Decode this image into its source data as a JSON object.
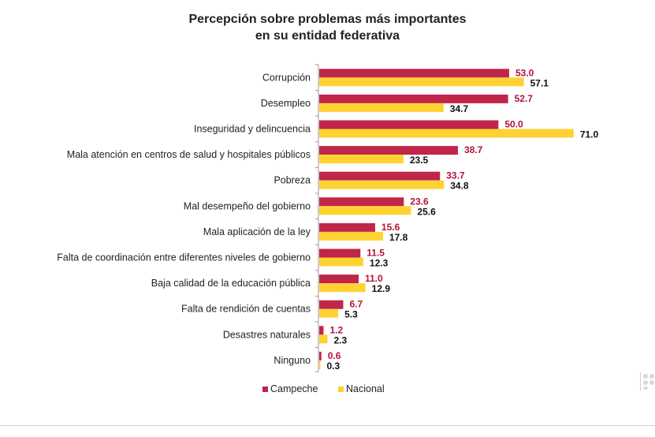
{
  "title_line1": "Percepción sobre problemas más importantes",
  "title_line2": "en su entidad federativa",
  "colors": {
    "campeche": "#c0254a",
    "nacional": "#ffd233",
    "campeche_label": "#b5123a",
    "nacional_label": "#111111",
    "axis": "#9a9a9a"
  },
  "chart_data": {
    "type": "bar",
    "orientation": "horizontal",
    "categories": [
      "Corrupción",
      "Desempleo",
      "Inseguridad y delincuencia",
      "Mala atención en centros de salud y hospitales públicos",
      "Pobreza",
      "Mal desempeño del gobierno",
      "Mala aplicación de la ley",
      "Falta de coordinación entre diferentes niveles de gobierno",
      "Baja calidad de la educación pública",
      "Falta de rendición de cuentas",
      "Desastres naturales",
      "Ninguno"
    ],
    "series": [
      {
        "name": "Campeche",
        "values": [
          53.0,
          52.7,
          50.0,
          38.7,
          33.7,
          23.6,
          15.6,
          11.5,
          11.0,
          6.7,
          1.2,
          0.6
        ],
        "labels": [
          "53.0",
          "52.7",
          "50.0",
          "38.7",
          "33.7",
          "23.6",
          "15.6",
          "11.5",
          "11.0",
          "6.7",
          "1.2",
          "0.6"
        ]
      },
      {
        "name": "Nacional",
        "values": [
          57.1,
          34.7,
          71.0,
          23.5,
          34.8,
          25.6,
          17.8,
          12.3,
          12.9,
          5.3,
          2.3,
          0.3
        ],
        "labels": [
          "57.1",
          "34.7",
          "71.0",
          "23.5",
          "34.8",
          "25.6",
          "17.8",
          "12.3",
          "12.9",
          "5.3",
          "2.3",
          "0.3"
        ]
      }
    ],
    "xlim": [
      0,
      75
    ],
    "grid": false,
    "legend": "bottom-center"
  }
}
